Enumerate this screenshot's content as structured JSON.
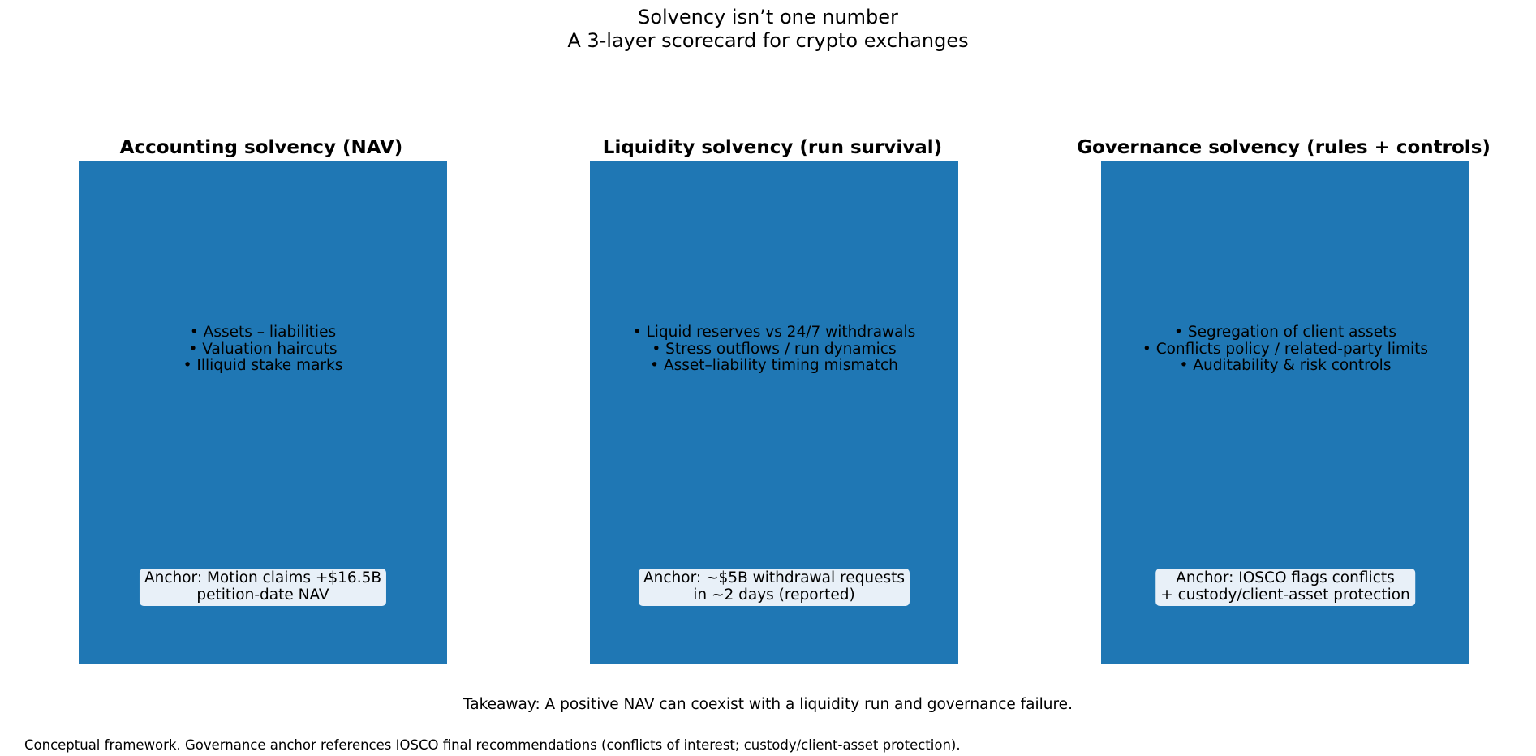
{
  "title": {
    "line1": "Solvency isn’t one number",
    "line2": "A 3-layer scorecard for crypto exchanges"
  },
  "colors": {
    "panel_fill": "#1f77b4",
    "anchor_fill": "#e8f0f8"
  },
  "panels": [
    {
      "title": "Accounting solvency (NAV)",
      "bullets": [
        "• Assets – liabilities",
        "• Valuation haircuts",
        "• Illiquid stake marks"
      ],
      "anchor": [
        "Anchor: Motion claims +$16.5B",
        "petition-date NAV"
      ]
    },
    {
      "title": "Liquidity solvency (run survival)",
      "bullets": [
        "• Liquid reserves vs 24/7 withdrawals",
        "• Stress outflows / run dynamics",
        "• Asset–liability timing mismatch"
      ],
      "anchor": [
        "Anchor: ~$5B withdrawal requests",
        "in ~2 days (reported)"
      ]
    },
    {
      "title": "Governance solvency (rules + controls)",
      "bullets": [
        "• Segregation of client assets",
        "• Conflicts policy / related-party limits",
        "• Auditability & risk controls"
      ],
      "anchor": [
        "Anchor: IOSCO flags conflicts",
        "+ custody/client-asset protection"
      ]
    }
  ],
  "takeaway": "Takeaway: A positive NAV can coexist with a liquidity run and governance failure.",
  "footnote": "Conceptual framework. Governance anchor references IOSCO final recommendations (conflicts of interest; custody/client-asset protection)."
}
